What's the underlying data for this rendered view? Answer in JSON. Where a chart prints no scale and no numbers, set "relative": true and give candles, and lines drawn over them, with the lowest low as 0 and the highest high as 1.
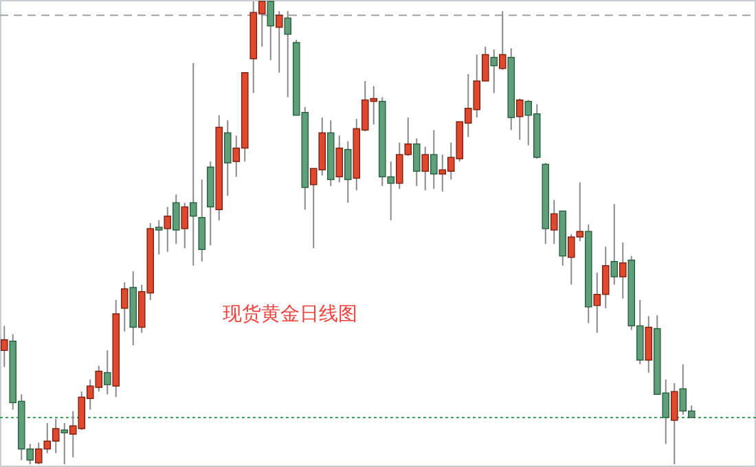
{
  "chart_data": {
    "type": "candlestick",
    "relative": true,
    "annotations": [
      "现货黄金日线图"
    ],
    "categories": [
      null,
      null,
      null,
      null,
      null,
      null,
      null,
      null,
      null,
      null,
      null,
      null,
      null,
      null,
      null,
      null,
      null,
      null,
      null,
      null,
      null,
      null,
      null,
      null,
      null,
      null,
      null,
      null,
      null,
      null,
      null,
      null,
      null,
      null,
      null,
      null,
      null,
      null,
      null,
      null,
      null,
      null,
      null,
      null,
      null,
      null,
      null,
      null,
      null,
      null,
      null,
      null,
      null,
      null,
      null,
      null,
      null,
      null,
      null,
      null,
      null,
      null,
      null,
      null,
      null,
      null,
      null,
      null,
      null,
      null,
      null,
      null,
      null,
      null,
      null,
      null,
      null,
      null,
      null,
      null,
      null,
      null,
      null,
      null,
      null,
      null,
      null,
      null
    ],
    "ohlc": [
      [
        0.246,
        0.299,
        0.21,
        0.269
      ],
      [
        0.266,
        0.281,
        0.118,
        0.133
      ],
      [
        0.136,
        0.151,
        0.009,
        0.033
      ],
      [
        0.033,
        0.044,
        0,
        0.009
      ],
      [
        0.003,
        0.047,
        0,
        0.033
      ],
      [
        0.033,
        0.089,
        0.024,
        0.05
      ],
      [
        0.05,
        0.098,
        0.024,
        0.077
      ],
      [
        0.074,
        0.089,
        0,
        0.068
      ],
      [
        0.065,
        0.115,
        0.015,
        0.083
      ],
      [
        0.077,
        0.157,
        0.074,
        0.145
      ],
      [
        0.142,
        0.183,
        0.118,
        0.169
      ],
      [
        0.166,
        0.213,
        0.157,
        0.201
      ],
      [
        0.198,
        0.246,
        0.151,
        0.172
      ],
      [
        0.169,
        0.355,
        0.145,
        0.325
      ],
      [
        0.337,
        0.393,
        0.287,
        0.379
      ],
      [
        0.382,
        0.417,
        0.257,
        0.296
      ],
      [
        0.296,
        0.388,
        0.284,
        0.373
      ],
      [
        0.37,
        0.521,
        0.355,
        0.509
      ],
      [
        0.512,
        0.527,
        0.453,
        0.506
      ],
      [
        0.509,
        0.556,
        0.459,
        0.536
      ],
      [
        0.565,
        0.583,
        0.476,
        0.506
      ],
      [
        0.509,
        0.565,
        0.467,
        0.556
      ],
      [
        0.565,
        0.867,
        0.429,
        0.536
      ],
      [
        0.533,
        0.615,
        0.438,
        0.464
      ],
      [
        0.642,
        0.654,
        0.473,
        0.556
      ],
      [
        0.55,
        0.754,
        0.527,
        0.728
      ],
      [
        0.716,
        0.743,
        0.58,
        0.651
      ],
      [
        0.654,
        0.71,
        0.621,
        0.683
      ],
      [
        0.683,
        0.846,
        0.654,
        0.846
      ],
      [
        0.876,
        1,
        0.802,
        0.976
      ],
      [
        0.973,
        1,
        0.902,
        1
      ],
      [
        1,
        1,
        0.873,
        0.947
      ],
      [
        0.944,
        0.979,
        0.846,
        0.97
      ],
      [
        0.964,
        0.979,
        0.793,
        0.929
      ],
      [
        0.911,
        0.917,
        0.754,
        0.754
      ],
      [
        0.76,
        0.772,
        0.55,
        0.598
      ],
      [
        0.604,
        0.639,
        0.467,
        0.639
      ],
      [
        0.636,
        0.749,
        0.624,
        0.716
      ],
      [
        0.716,
        0.743,
        0.601,
        0.615
      ],
      [
        0.621,
        0.71,
        0.609,
        0.683
      ],
      [
        0.68,
        0.698,
        0.565,
        0.615
      ],
      [
        0.618,
        0.746,
        0.592,
        0.725
      ],
      [
        0.722,
        0.828,
        0.719,
        0.787
      ],
      [
        0.784,
        0.817,
        0.734,
        0.79
      ],
      [
        0.784,
        0.793,
        0.601,
        0.621
      ],
      [
        0.621,
        0.654,
        0.527,
        0.607
      ],
      [
        0.607,
        0.695,
        0.595,
        0.669
      ],
      [
        0.669,
        0.749,
        0.666,
        0.692
      ],
      [
        0.692,
        0.704,
        0.601,
        0.633
      ],
      [
        0.633,
        0.686,
        0.592,
        0.669
      ],
      [
        0.669,
        0.722,
        0.595,
        0.627
      ],
      [
        0.627,
        0.669,
        0.589,
        0.636
      ],
      [
        0.633,
        0.695,
        0.615,
        0.663
      ],
      [
        0.66,
        0.74,
        0.654,
        0.74
      ],
      [
        0.737,
        0.843,
        0.707,
        0.769
      ],
      [
        0.766,
        0.885,
        0.749,
        0.828
      ],
      [
        0.828,
        0.902,
        0.828,
        0.885
      ],
      [
        0.879,
        0.896,
        0.802,
        0.861
      ],
      [
        0.855,
        0.979,
        0.852,
        0.885
      ],
      [
        0.879,
        0.899,
        0.722,
        0.749
      ],
      [
        0.751,
        0.79,
        0.701,
        0.787
      ],
      [
        0.784,
        0.787,
        0.689,
        0.754
      ],
      [
        0.757,
        0.778,
        0.66,
        0.663
      ],
      [
        0.648,
        0.651,
        0.476,
        0.509
      ],
      [
        0.506,
        0.571,
        0.476,
        0.541
      ],
      [
        0.547,
        0.547,
        0.429,
        0.45
      ],
      [
        0.447,
        0.497,
        0.388,
        0.491
      ],
      [
        0.491,
        0.609,
        0.482,
        0.503
      ],
      [
        0.503,
        0.518,
        0.305,
        0.34
      ],
      [
        0.343,
        0.414,
        0.284,
        0.367
      ],
      [
        0.367,
        0.47,
        0.337,
        0.429
      ],
      [
        0.438,
        0.562,
        0.388,
        0.405
      ],
      [
        0.405,
        0.479,
        0.358,
        0.435
      ],
      [
        0.441,
        0.45,
        0.29,
        0.299
      ],
      [
        0.299,
        0.355,
        0.216,
        0.225
      ],
      [
        0.225,
        0.32,
        0.198,
        0.296
      ],
      [
        0.293,
        0.322,
        0.151,
        0.151
      ],
      [
        0.154,
        0.183,
        0.044,
        0.101
      ],
      [
        0.095,
        0.175,
        0,
        0.157
      ],
      [
        0.163,
        0.216,
        0.107,
        0.115
      ],
      [
        0.115,
        0.127,
        0.101,
        0.101
      ],
      null,
      null,
      null,
      null,
      null,
      null,
      null
    ],
    "colors": [
      "#e0492e",
      "#5f9f79",
      "#5f9f79",
      "#5f9f79",
      "#e0492e",
      "#e0492e",
      "#e0492e",
      "#5f9f79",
      "#e0492e",
      "#e0492e",
      "#e0492e",
      "#e0492e",
      "#5f9f79",
      "#e0492e",
      "#e0492e",
      "#5f9f79",
      "#e0492e",
      "#e0492e",
      "#5f9f79",
      "#e0492e",
      "#5f9f79",
      "#e0492e",
      "#5f9f79",
      "#5f9f79",
      "#5f9f79",
      "#e0492e",
      "#5f9f79",
      "#e0492e",
      "#e0492e",
      "#e0492e",
      "#e0492e",
      "#5f9f79",
      "#e0492e",
      "#5f9f79",
      "#5f9f79",
      "#5f9f79",
      "#e0492e",
      "#e0492e",
      "#5f9f79",
      "#e0492e",
      "#5f9f79",
      "#e0492e",
      "#e0492e",
      "#e0492e",
      "#5f9f79",
      "#5f9f79",
      "#e0492e",
      "#e0492e",
      "#5f9f79",
      "#e0492e",
      "#5f9f79",
      "#e0492e",
      "#e0492e",
      "#e0492e",
      "#e0492e",
      "#e0492e",
      "#e0492e",
      "#5f9f79",
      "#e0492e",
      "#5f9f79",
      "#e0492e",
      "#5f9f79",
      "#5f9f79",
      "#5f9f79",
      "#e0492e",
      "#5f9f79",
      "#e0492e",
      "#e0492e",
      "#5f9f79",
      "#e0492e",
      "#e0492e",
      "#5f9f79",
      "#e0492e",
      "#5f9f79",
      "#5f9f79",
      "#e0492e",
      "#5f9f79",
      "#5f9f79",
      "#e0492e",
      "#5f9f79",
      "#5f9f79",
      null,
      null,
      null,
      null,
      null,
      null,
      null
    ],
    "ref_lines": [
      {
        "axis": "y",
        "value": 0.97,
        "color": "#a0a4a8",
        "line_style": "dashed"
      },
      {
        "axis": "y",
        "value": 0.101,
        "color": "#3aa05a",
        "line_style": "dotted"
      }
    ]
  }
}
